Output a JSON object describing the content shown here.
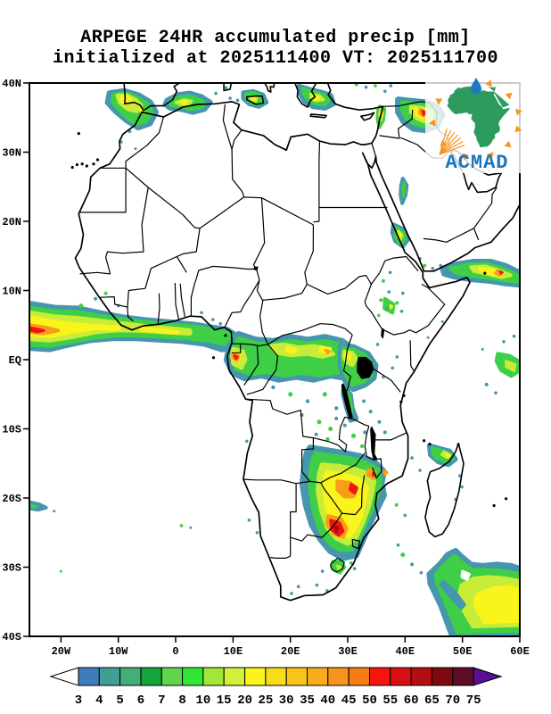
{
  "title": {
    "line1": "ARPEGE 24HR accumulated precip [mm]",
    "line2": "initialized at 2025111400 VT: 2025111700"
  },
  "axes": {
    "lat": [
      "40N",
      "30N",
      "20N",
      "10N",
      "EQ",
      "10S",
      "20S",
      "30S",
      "40S"
    ],
    "lon": [
      "20W",
      "10W",
      "0",
      "10E",
      "20E",
      "30E",
      "40E",
      "50E",
      "60E"
    ]
  },
  "colorbar": {
    "labels": [
      "3",
      "4",
      "5",
      "6",
      "7",
      "8",
      "10",
      "15",
      "20",
      "25",
      "30",
      "35",
      "40",
      "45",
      "50",
      "55",
      "60",
      "65",
      "70",
      "75"
    ],
    "colors": [
      "#3D7EBA",
      "#3F9E96",
      "#42AE78",
      "#14A43A",
      "#60D44C",
      "#32E636",
      "#A2E636",
      "#D4F03A",
      "#F8F41C",
      "#F8DC1C",
      "#F8C41C",
      "#F8AC1C",
      "#F8941C",
      "#F87C16",
      "#F51410",
      "#D61014",
      "#B20E14",
      "#7E0A10",
      "#5E0C28"
    ],
    "below_color": "#FFFFFF",
    "above_color": "#5A0D96"
  },
  "logo": {
    "text": "ACMAD",
    "africa_color": "#2E9B5E",
    "drop_color": "#1C79BE",
    "triangle_color": "#F7941D",
    "text_color": "#1B75BB"
  },
  "map": {
    "border_color": "#000000",
    "palette": {
      "fringe": "#4596AE",
      "green": "#3ECF46",
      "green2": "#7FDE3E",
      "yellow_green": "#C9EC38",
      "yellow": "#F8F41C",
      "gold": "#F8C41C",
      "orange": "#F89C1A",
      "deep_orange": "#F8761A",
      "red": "#EF1410",
      "dark_red": "#AE0D12",
      "white": "#FFFFFF"
    }
  }
}
